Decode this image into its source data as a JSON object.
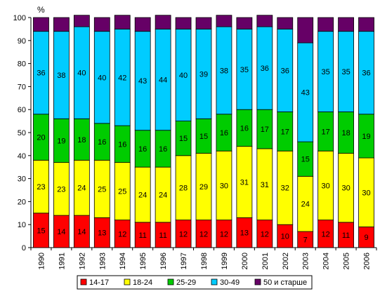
{
  "chart_data": {
    "type": "bar",
    "stacked": true,
    "unit_label": "%",
    "title": "",
    "xlabel": "",
    "ylabel": "",
    "ylim": [
      0,
      100
    ],
    "yticks": [
      0,
      10,
      20,
      30,
      40,
      50,
      60,
      70,
      80,
      90,
      100
    ],
    "categories": [
      "1990",
      "1991",
      "1992",
      "1993",
      "1994",
      "1995",
      "1996",
      "1997",
      "1998",
      "1999",
      "2000",
      "2001",
      "2002",
      "2003",
      "2004",
      "2005",
      "2006"
    ],
    "series": [
      {
        "name": "14-17",
        "color": "#ff0000",
        "values": [
          15,
          14,
          14,
          13,
          12,
          11,
          11,
          12,
          12,
          12,
          13,
          12,
          10,
          7,
          12,
          11,
          9
        ]
      },
      {
        "name": "18-24",
        "color": "#ffff00",
        "values": [
          23,
          23,
          24,
          25,
          25,
          24,
          24,
          28,
          29,
          30,
          31,
          31,
          32,
          24,
          30,
          30,
          30
        ]
      },
      {
        "name": "25-29",
        "color": "#00cc00",
        "values": [
          20,
          19,
          18,
          16,
          16,
          16,
          16,
          15,
          15,
          16,
          16,
          17,
          17,
          15,
          17,
          18,
          19
        ]
      },
      {
        "name": "30-49",
        "color": "#00ccff",
        "values": [
          36,
          38,
          40,
          40,
          42,
          43,
          44,
          40,
          39,
          38,
          35,
          36,
          36,
          43,
          35,
          35,
          36
        ]
      },
      {
        "name": "50 и старше",
        "color": "#660066",
        "values": [
          6,
          6,
          5,
          6,
          6,
          6,
          6,
          5,
          5,
          5,
          5,
          5,
          5,
          11,
          6,
          6,
          6
        ]
      }
    ],
    "show_labels_for": [
      "14-17",
      "18-24",
      "25-29",
      "30-49"
    ],
    "grid": false,
    "legend_position": "bottom"
  }
}
